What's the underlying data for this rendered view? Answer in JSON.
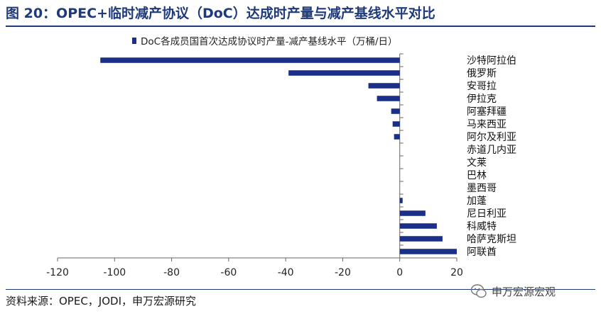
{
  "header": {
    "title": "图 20：OPEC+临时减产协议（DoC）达成时产量与减产基线水平对比"
  },
  "footer": {
    "source": "资料来源：OPEC，JODI，申万宏源研究",
    "watermark": "申万宏源宏观"
  },
  "chart_data": {
    "type": "bar",
    "orientation": "horizontal",
    "title": "",
    "xlabel": "",
    "ylabel": "",
    "legend": "top",
    "legend_entries": [
      "DoC各成员国首次达成协议时产量-减产基线水平（万桶/日）"
    ],
    "color": "#1a2f8a",
    "xlim": [
      -120,
      20
    ],
    "xticks": [
      -120,
      -100,
      -80,
      -60,
      -40,
      -20,
      0,
      20
    ],
    "grid": false,
    "categories": [
      "沙特阿拉伯",
      "俄罗斯",
      "安哥拉",
      "伊拉克",
      "阿塞拜疆",
      "马来西亚",
      "阿尔及利亚",
      "赤道几内亚",
      "文莱",
      "巴林",
      "墨西哥",
      "加蓬",
      "尼日利亚",
      "科威特",
      "哈萨克斯坦",
      "阿联酋"
    ],
    "series": [
      {
        "name": "DoC各成员国首次达成协议时产量-减产基线水平（万桶/日）",
        "values": [
          -105,
          -39,
          -11,
          -8,
          -3,
          -2.5,
          -2,
          0,
          0,
          0,
          0,
          1,
          9,
          13,
          15,
          20
        ]
      }
    ]
  }
}
